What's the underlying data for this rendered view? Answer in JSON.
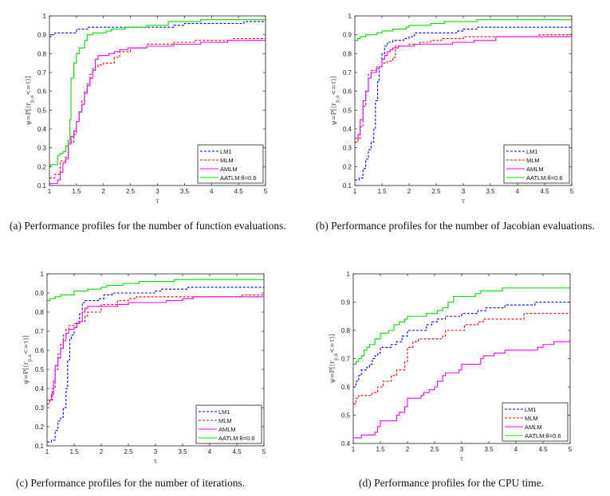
{
  "captions": {
    "a": "(a) Performance profiles for the number of function evaluations.",
    "b": "(b) Performance profiles for the number of Jacobian evaluations.",
    "c": "(c) Performance profiles for the number of iterations.",
    "d": "(d) Performance profiles for the CPU time."
  },
  "colors": {
    "LM1": "#0000ff",
    "MLM": "#ff0000",
    "AMLM": "#ff00ff",
    "AATLM:θ=0.6": "#00dd00"
  },
  "chart_data": [
    {
      "id": "a",
      "type": "line",
      "title": "",
      "xlabel": "τ",
      "ylabel": "ψ=P[(r_{p,a}<=τ)]",
      "xlim": [
        1,
        5
      ],
      "ylim": [
        0.1,
        1
      ],
      "xticks": [
        "1",
        "1.5",
        "2",
        "2.5",
        "3",
        "3.5",
        "4",
        "4.5",
        "5"
      ],
      "yticks": [
        "0.1",
        "0.2",
        "0.3",
        "0.4",
        "0.5",
        "0.6",
        "0.7",
        "0.8",
        "0.9",
        "1"
      ],
      "legend": {
        "position": "bottom-right",
        "entries": [
          "LM1",
          "MLM",
          "AMLM",
          "AATLM:θ=0.6"
        ]
      },
      "series": [
        {
          "name": "LM1",
          "style": "dashed",
          "x": [
            1,
            1.03,
            1.1,
            1.45,
            1.5,
            1.72,
            2.3,
            3.3,
            3.5,
            4.5,
            4.6,
            5
          ],
          "y": [
            0.89,
            0.9,
            0.91,
            0.91,
            0.93,
            0.94,
            0.94,
            0.95,
            0.96,
            0.96,
            0.97,
            0.97
          ]
        },
        {
          "name": "MLM",
          "style": "dashed",
          "x": [
            1,
            1.1,
            1.2,
            1.3,
            1.35,
            1.45,
            1.5,
            1.55,
            1.6,
            1.65,
            1.7,
            1.75,
            1.8,
            1.85,
            1.9,
            2.0,
            2.15,
            2.2,
            2.3,
            2.5,
            2.8,
            3.0,
            3.3,
            3.7,
            4.1,
            4.4,
            5
          ],
          "y": [
            0.14,
            0.16,
            0.23,
            0.25,
            0.33,
            0.37,
            0.44,
            0.49,
            0.55,
            0.6,
            0.64,
            0.69,
            0.72,
            0.73,
            0.74,
            0.75,
            0.75,
            0.78,
            0.81,
            0.83,
            0.85,
            0.85,
            0.86,
            0.87,
            0.87,
            0.88,
            0.88
          ]
        },
        {
          "name": "AMLM",
          "style": "solid",
          "x": [
            1,
            1.08,
            1.15,
            1.2,
            1.25,
            1.3,
            1.35,
            1.4,
            1.45,
            1.5,
            1.55,
            1.6,
            1.65,
            1.7,
            1.75,
            1.8,
            1.85,
            1.9,
            2.05,
            2.1,
            2.2,
            2.3,
            2.45,
            2.8,
            3.3,
            3.8,
            4.3,
            5
          ],
          "y": [
            0.11,
            0.11,
            0.13,
            0.17,
            0.22,
            0.24,
            0.32,
            0.36,
            0.39,
            0.44,
            0.49,
            0.53,
            0.59,
            0.63,
            0.67,
            0.71,
            0.77,
            0.79,
            0.79,
            0.8,
            0.81,
            0.82,
            0.83,
            0.84,
            0.85,
            0.86,
            0.87,
            0.87
          ]
        },
        {
          "name": "AATLM:θ=0.6",
          "style": "solid",
          "x": [
            1,
            1.02,
            1.15,
            1.2,
            1.25,
            1.3,
            1.35,
            1.38,
            1.4,
            1.45,
            1.5,
            1.55,
            1.6,
            1.65,
            1.7,
            1.8,
            1.9,
            2.05,
            2.15,
            2.4,
            2.8,
            3.2,
            3.8,
            5
          ],
          "y": [
            0.2,
            0.21,
            0.26,
            0.27,
            0.28,
            0.31,
            0.34,
            0.45,
            0.67,
            0.75,
            0.8,
            0.83,
            0.83,
            0.87,
            0.9,
            0.91,
            0.91,
            0.92,
            0.93,
            0.94,
            0.95,
            0.97,
            0.98,
            0.98
          ]
        }
      ]
    },
    {
      "id": "b",
      "type": "line",
      "title": "",
      "xlabel": "τ",
      "ylabel": "ψ=P[(r_{p,a}<=τ)]",
      "xlim": [
        1,
        5
      ],
      "ylim": [
        0.1,
        1
      ],
      "xticks": [
        "1",
        "1.5",
        "2",
        "2.5",
        "3",
        "3.5",
        "4",
        "4.5",
        "5"
      ],
      "yticks": [
        "0.1",
        "0.2",
        "0.3",
        "0.4",
        "0.5",
        "0.6",
        "0.7",
        "0.8",
        "0.9",
        "1"
      ],
      "legend": {
        "position": "bottom-right",
        "entries": [
          "LM1",
          "MLM",
          "AMLM",
          "AATLM:θ=0.6"
        ]
      },
      "series": [
        {
          "name": "LM1",
          "style": "dashed",
          "x": [
            1,
            1.08,
            1.15,
            1.2,
            1.25,
            1.3,
            1.35,
            1.38,
            1.42,
            1.45,
            1.5,
            1.55,
            1.6,
            1.7,
            1.9,
            2.0,
            2.1,
            2.5,
            2.9,
            3.0,
            3.25,
            5
          ],
          "y": [
            0.13,
            0.14,
            0.19,
            0.24,
            0.29,
            0.33,
            0.4,
            0.55,
            0.65,
            0.73,
            0.8,
            0.84,
            0.86,
            0.87,
            0.88,
            0.89,
            0.91,
            0.91,
            0.92,
            0.93,
            0.94,
            0.94
          ]
        },
        {
          "name": "MLM",
          "style": "dashed",
          "x": [
            1,
            1.06,
            1.1,
            1.15,
            1.2,
            1.25,
            1.3,
            1.4,
            1.5,
            1.6,
            1.7,
            1.75,
            2.0,
            2.2,
            2.4,
            2.6,
            3.0,
            4.4,
            5
          ],
          "y": [
            0.33,
            0.35,
            0.41,
            0.52,
            0.6,
            0.69,
            0.71,
            0.73,
            0.75,
            0.76,
            0.78,
            0.84,
            0.85,
            0.86,
            0.87,
            0.88,
            0.89,
            0.9,
            0.9
          ]
        },
        {
          "name": "AMLM",
          "style": "solid",
          "x": [
            1,
            1.06,
            1.1,
            1.15,
            1.2,
            1.25,
            1.3,
            1.4,
            1.45,
            1.5,
            1.55,
            1.6,
            1.65,
            1.7,
            1.8,
            2.1,
            2.4,
            2.8,
            3.0,
            3.2,
            3.6,
            5
          ],
          "y": [
            0.35,
            0.37,
            0.45,
            0.55,
            0.6,
            0.67,
            0.7,
            0.72,
            0.73,
            0.77,
            0.79,
            0.81,
            0.82,
            0.83,
            0.84,
            0.85,
            0.85,
            0.86,
            0.86,
            0.87,
            0.89,
            0.89
          ]
        },
        {
          "name": "AATLM:θ=0.6",
          "style": "solid",
          "x": [
            1,
            1.05,
            1.1,
            1.2,
            1.4,
            1.5,
            1.7,
            1.95,
            2.0,
            2.4,
            2.65,
            3.25,
            5
          ],
          "y": [
            0.87,
            0.88,
            0.89,
            0.9,
            0.91,
            0.92,
            0.93,
            0.94,
            0.95,
            0.96,
            0.97,
            0.98,
            0.98
          ]
        }
      ]
    },
    {
      "id": "c",
      "type": "line",
      "title": "",
      "xlabel": "τ",
      "ylabel": "ψ=P[(r_{p,a}<=τ)]",
      "xlim": [
        1,
        5
      ],
      "ylim": [
        0.1,
        1
      ],
      "xticks": [
        "1",
        "1.5",
        "2",
        "2.5",
        "3",
        "3.5",
        "4",
        "4.5",
        "5"
      ],
      "yticks": [
        "0.1",
        "0.2",
        "0.3",
        "0.4",
        "0.5",
        "0.6",
        "0.7",
        "0.8",
        "0.9",
        "1"
      ],
      "legend": {
        "position": "bottom-right",
        "entries": [
          "LM1",
          "MLM",
          "AMLM",
          "AATLM:θ=0.6"
        ]
      },
      "series": [
        {
          "name": "LM1",
          "style": "dashed",
          "x": [
            1,
            1.08,
            1.15,
            1.2,
            1.25,
            1.3,
            1.35,
            1.38,
            1.42,
            1.45,
            1.5,
            1.55,
            1.6,
            1.65,
            1.7,
            1.95,
            2.05,
            2.2,
            3.0,
            3.1,
            3.6,
            5
          ],
          "y": [
            0.12,
            0.13,
            0.18,
            0.23,
            0.25,
            0.3,
            0.4,
            0.55,
            0.66,
            0.68,
            0.72,
            0.75,
            0.79,
            0.85,
            0.86,
            0.87,
            0.89,
            0.9,
            0.91,
            0.92,
            0.93,
            0.93
          ]
        },
        {
          "name": "MLM",
          "style": "dashed",
          "x": [
            1,
            1.05,
            1.1,
            1.15,
            1.2,
            1.25,
            1.3,
            1.35,
            1.4,
            1.5,
            1.6,
            1.7,
            1.75,
            2.0,
            2.3,
            2.5,
            2.65,
            4.6,
            5
          ],
          "y": [
            0.32,
            0.34,
            0.4,
            0.5,
            0.58,
            0.63,
            0.68,
            0.71,
            0.73,
            0.74,
            0.75,
            0.78,
            0.8,
            0.84,
            0.86,
            0.87,
            0.88,
            0.89,
            0.89
          ]
        },
        {
          "name": "AMLM",
          "style": "solid",
          "x": [
            1,
            1.08,
            1.12,
            1.15,
            1.2,
            1.25,
            1.3,
            1.35,
            1.4,
            1.5,
            1.55,
            1.6,
            1.65,
            1.7,
            1.75,
            2.3,
            2.5,
            3.2,
            3.5,
            3.7,
            5
          ],
          "y": [
            0.34,
            0.37,
            0.44,
            0.52,
            0.56,
            0.61,
            0.65,
            0.69,
            0.71,
            0.72,
            0.74,
            0.75,
            0.8,
            0.82,
            0.83,
            0.84,
            0.85,
            0.86,
            0.87,
            0.88,
            0.88
          ]
        },
        {
          "name": "AATLM:θ=0.6",
          "style": "solid",
          "x": [
            1,
            1.05,
            1.15,
            1.25,
            1.5,
            1.75,
            2.0,
            2.1,
            2.4,
            2.7,
            3.35,
            5
          ],
          "y": [
            0.86,
            0.87,
            0.88,
            0.89,
            0.91,
            0.92,
            0.93,
            0.94,
            0.95,
            0.96,
            0.97,
            0.97
          ]
        }
      ]
    },
    {
      "id": "d",
      "type": "line",
      "title": "",
      "xlabel": "τ",
      "ylabel": "ψ=P[(r_{p,a}<=τ)]",
      "xlim": [
        1,
        5
      ],
      "ylim": [
        0.4,
        1
      ],
      "xticks": [
        "1",
        "1.5",
        "2",
        "2.5",
        "3",
        "3.5",
        "4",
        "4.5",
        "5"
      ],
      "yticks": [
        "0.4",
        "0.5",
        "0.6",
        "0.7",
        "0.8",
        "0.9",
        "1"
      ],
      "legend": {
        "position": "bottom-right",
        "entries": [
          "LM1",
          "MLM",
          "AMLM",
          "AATLM:θ=0.6"
        ]
      },
      "series": [
        {
          "name": "LM1",
          "style": "dashed",
          "x": [
            1,
            1.05,
            1.1,
            1.15,
            1.25,
            1.3,
            1.35,
            1.4,
            1.45,
            1.5,
            1.7,
            1.8,
            1.9,
            2.0,
            2.35,
            2.45,
            2.55,
            2.7,
            3.0,
            3.3,
            3.45,
            3.8,
            4.35,
            5
          ],
          "y": [
            0.6,
            0.62,
            0.64,
            0.66,
            0.67,
            0.68,
            0.7,
            0.71,
            0.72,
            0.74,
            0.75,
            0.76,
            0.78,
            0.8,
            0.82,
            0.83,
            0.84,
            0.85,
            0.86,
            0.87,
            0.88,
            0.89,
            0.9,
            0.9
          ]
        },
        {
          "name": "MLM",
          "style": "dashed",
          "x": [
            1,
            1.05,
            1.1,
            1.35,
            1.45,
            1.55,
            1.7,
            1.8,
            1.95,
            2.0,
            2.1,
            2.2,
            2.65,
            2.7,
            3.05,
            3.3,
            3.4,
            4.15,
            5
          ],
          "y": [
            0.54,
            0.56,
            0.57,
            0.58,
            0.6,
            0.62,
            0.64,
            0.66,
            0.69,
            0.74,
            0.76,
            0.77,
            0.78,
            0.8,
            0.82,
            0.83,
            0.84,
            0.86,
            0.87
          ]
        },
        {
          "name": "AMLM",
          "style": "solid",
          "x": [
            1,
            1.15,
            1.4,
            1.45,
            1.5,
            1.8,
            1.85,
            1.95,
            2.0,
            2.25,
            2.3,
            2.4,
            2.5,
            2.55,
            2.65,
            2.7,
            2.95,
            3.0,
            3.35,
            3.4,
            3.6,
            3.7,
            3.8,
            4.4,
            4.5,
            4.7,
            5
          ],
          "y": [
            0.42,
            0.43,
            0.44,
            0.46,
            0.48,
            0.5,
            0.51,
            0.53,
            0.56,
            0.57,
            0.58,
            0.59,
            0.6,
            0.62,
            0.64,
            0.65,
            0.66,
            0.68,
            0.7,
            0.71,
            0.72,
            0.72,
            0.73,
            0.74,
            0.75,
            0.76,
            0.77
          ]
        },
        {
          "name": "AATLM:θ=0.6",
          "style": "solid",
          "x": [
            1,
            1.05,
            1.1,
            1.15,
            1.2,
            1.25,
            1.3,
            1.4,
            1.5,
            1.65,
            1.75,
            1.85,
            1.95,
            2.0,
            2.35,
            2.55,
            2.65,
            2.75,
            2.85,
            3.25,
            3.35,
            3.75,
            5
          ],
          "y": [
            0.68,
            0.69,
            0.7,
            0.71,
            0.73,
            0.74,
            0.75,
            0.77,
            0.79,
            0.8,
            0.82,
            0.83,
            0.84,
            0.85,
            0.86,
            0.87,
            0.88,
            0.9,
            0.92,
            0.93,
            0.94,
            0.95,
            0.95
          ]
        }
      ]
    }
  ]
}
